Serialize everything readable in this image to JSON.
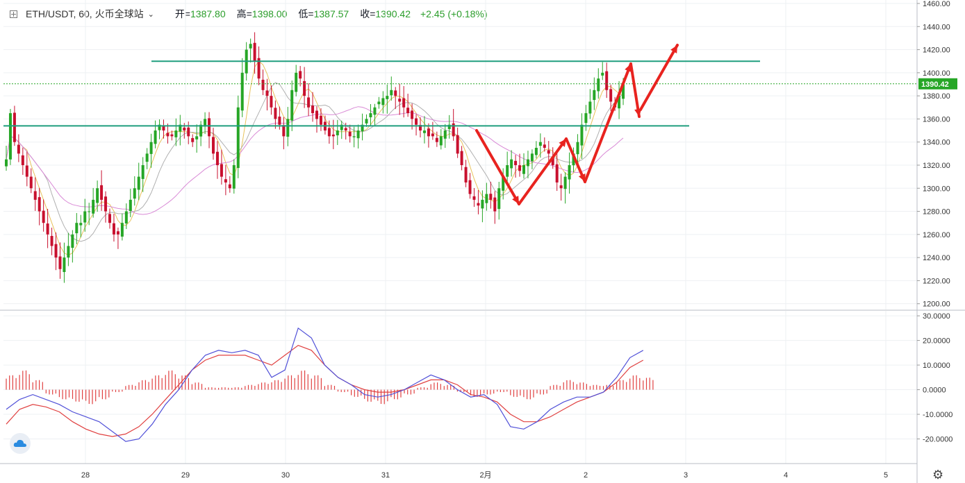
{
  "header": {
    "symbol": "ETH/USDT, 60, 火币全球站",
    "open_label": "开=",
    "open": "1387.80",
    "high_label": "高=",
    "high": "1398.00",
    "low_label": "低=",
    "low": "1387.57",
    "close_label": "收=",
    "close": "1390.42",
    "change": "+2.45 (+0.18%)"
  },
  "colors": {
    "up": "#26a626",
    "down": "#c8102e",
    "ma_fast": "#e8c25a",
    "ma_mid": "#b0b0b0",
    "ma_slow": "#d98ad6",
    "level": "#1f9e7e",
    "macd_dif": "#5050d8",
    "macd_dea": "#e04040",
    "hist": "#e04040",
    "arrow": "#e8231f"
  },
  "icons": {
    "logo": "tradingview-cloud-icon",
    "settings": "gear-icon",
    "expand": "plus-square-icon"
  },
  "chart_data": [
    {
      "type": "candlestick",
      "title": "ETH/USDT, 60, 火币全球站",
      "ylim": [
        1195,
        1463
      ],
      "y_ticks": [
        "1460.00",
        "1440.00",
        "1420.00",
        "1400.00",
        "1380.00",
        "1360.00",
        "1340.00",
        "1320.00",
        "1300.00",
        "1280.00",
        "1260.00",
        "1240.00",
        "1220.00",
        "1200.00"
      ],
      "x_ticks": [
        "28",
        "29",
        "30",
        "31",
        "2月",
        "2",
        "3",
        "4",
        "5"
      ],
      "last_price": "1390.42",
      "horizontal_levels": [
        1410,
        1354
      ],
      "close_path": [
        1325,
        1365,
        1340,
        1330,
        1320,
        1310,
        1300,
        1290,
        1280,
        1270,
        1260,
        1250,
        1240,
        1230,
        1240,
        1250,
        1260,
        1270,
        1270,
        1280,
        1280,
        1290,
        1300,
        1290,
        1280,
        1270,
        1260,
        1260,
        1270,
        1280,
        1290,
        1300,
        1310,
        1320,
        1330,
        1340,
        1350,
        1355,
        1350,
        1345,
        1345,
        1350,
        1355,
        1350,
        1345,
        1340,
        1345,
        1355,
        1360,
        1345,
        1330,
        1320,
        1310,
        1305,
        1300,
        1320,
        1370,
        1400,
        1420,
        1425,
        1410,
        1395,
        1385,
        1380,
        1370,
        1360,
        1355,
        1345,
        1360,
        1385,
        1400,
        1395,
        1380,
        1370,
        1365,
        1360,
        1355,
        1350,
        1345,
        1345,
        1350,
        1355,
        1350,
        1345,
        1345,
        1350,
        1355,
        1360,
        1365,
        1370,
        1375,
        1378,
        1380,
        1385,
        1380,
        1375,
        1370,
        1365,
        1360,
        1355,
        1350,
        1350,
        1345,
        1345,
        1340,
        1345,
        1350,
        1355,
        1345,
        1330,
        1320,
        1305,
        1295,
        1290,
        1285,
        1290,
        1295,
        1290,
        1280,
        1300,
        1310,
        1320,
        1325,
        1320,
        1315,
        1320,
        1325,
        1330,
        1335,
        1340,
        1335,
        1330,
        1320,
        1305,
        1300,
        1310,
        1320,
        1330,
        1340,
        1355,
        1365,
        1375,
        1385,
        1395,
        1400,
        1385,
        1375,
        1370,
        1380,
        1390
      ]
    },
    {
      "type": "macd",
      "ylim": [
        -30,
        32
      ],
      "y_ticks": [
        "30.0000",
        "20.0000",
        "10.0000",
        "0.0000",
        "-10.0000",
        "-20.0000"
      ],
      "dif_path": [
        -8,
        -4,
        -2,
        -4,
        -6,
        -9,
        -11,
        -13,
        -17,
        -21,
        -20,
        -14,
        -6,
        0,
        8,
        14,
        16,
        15,
        16,
        14,
        5,
        8,
        25,
        21,
        10,
        5,
        2,
        -2,
        -3,
        -2,
        0,
        3,
        6,
        4,
        0,
        -3,
        -2,
        -6,
        -15,
        -16,
        -13,
        -8,
        -5,
        -3,
        -3,
        -1,
        5,
        13,
        16
      ],
      "dea_path": [
        -14,
        -8,
        -6,
        -7,
        -9,
        -13,
        -16,
        -18,
        -19,
        -18,
        -15,
        -10,
        -4,
        2,
        8,
        12,
        14,
        14,
        14,
        12,
        10,
        14,
        18,
        16,
        10,
        5,
        2,
        0,
        -1,
        -1,
        0,
        2,
        4,
        4,
        2,
        -2,
        -3,
        -5,
        -10,
        -13,
        -13,
        -11,
        -8,
        -5,
        -3,
        -1,
        3,
        9,
        12
      ],
      "histogram_path": [
        6,
        8,
        4,
        -2,
        -4,
        -5,
        -6,
        -4,
        -1,
        2,
        4,
        6,
        8,
        6,
        3,
        1,
        1,
        1,
        2,
        3,
        4,
        6,
        8,
        6,
        2,
        -1,
        -3,
        -5,
        -6,
        -4,
        -2,
        1,
        3,
        2,
        -1,
        -3,
        -2,
        -1,
        -3,
        -4,
        -2,
        2,
        4,
        3,
        2,
        2,
        4,
        6,
        5
      ]
    }
  ]
}
